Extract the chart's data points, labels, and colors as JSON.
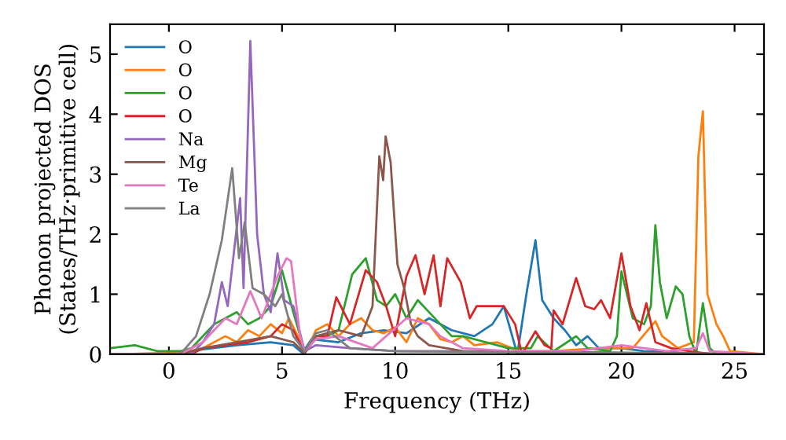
{
  "chart_data": {
    "type": "line",
    "xlabel": "Frequency (THz)",
    "ylabel": "Phonon projected DOS\n(States/THz·primitive cell)",
    "xlim": [
      -2.6,
      26.3
    ],
    "ylim": [
      0,
      5.5
    ],
    "xticks": [
      0,
      5,
      10,
      15,
      20,
      25
    ],
    "yticks": [
      0,
      1,
      2,
      3,
      4,
      5
    ],
    "grid": false,
    "legend": "top left",
    "series": [
      {
        "name": "O",
        "color": "#1f77b4",
        "x": [
          -2.6,
          0.5,
          1.5,
          3,
          4.5,
          5.5,
          5.9,
          6.3,
          7.5,
          8.5,
          9.5,
          10.5,
          11.5,
          12.5,
          13.5,
          14.3,
          14.8,
          15.1,
          15.4,
          15.8,
          16.2,
          16.5,
          17,
          17.5,
          18,
          18.5,
          19,
          20,
          21,
          23,
          25,
          26.3
        ],
        "values": [
          0,
          0.02,
          0.08,
          0.15,
          0.2,
          0.15,
          0.02,
          0.25,
          0.2,
          0.35,
          0.4,
          0.35,
          0.6,
          0.4,
          0.3,
          0.5,
          0.8,
          0.4,
          0,
          1.0,
          1.9,
          0.9,
          0.6,
          0.4,
          0.15,
          0.3,
          0.1,
          0.1,
          0.05,
          0.02,
          0,
          0
        ]
      },
      {
        "name": "O",
        "color": "#ff7f0e",
        "x": [
          -2.6,
          0.5,
          1.5,
          2.5,
          3,
          3.5,
          4,
          4.5,
          5,
          5.3,
          5.7,
          6,
          6.5,
          7,
          7.5,
          8,
          8.5,
          9,
          9.5,
          10,
          10.5,
          11,
          11.5,
          12,
          12.5,
          13,
          13.5,
          14.5,
          15.5,
          17,
          19,
          20.5,
          21.5,
          21.8,
          22.5,
          23.2,
          23.4,
          23.6,
          23.8,
          24.2,
          24.5,
          24.8,
          26.3
        ],
        "values": [
          0,
          0.02,
          0.1,
          0.3,
          0.2,
          0.4,
          0.3,
          0.5,
          0.35,
          0.6,
          0.3,
          0,
          0.4,
          0.5,
          0.3,
          0.5,
          0.6,
          0.4,
          0.35,
          0.45,
          0.2,
          0.6,
          0.5,
          0.25,
          0.2,
          0.3,
          0.15,
          0.2,
          0.05,
          0.05,
          0.1,
          0.1,
          0.55,
          0.3,
          0.1,
          0.2,
          3.3,
          4.05,
          1.0,
          0.5,
          0.3,
          0.05,
          0
        ]
      },
      {
        "name": "O",
        "color": "#2ca02c",
        "x": [
          -2.6,
          -1.5,
          -0.5,
          0.5,
          1,
          2,
          2.5,
          3,
          3.5,
          4,
          4.5,
          5,
          5.5,
          6,
          6.5,
          7,
          7.5,
          8.1,
          8.7,
          9.2,
          9.6,
          10,
          10.5,
          11,
          11.5,
          12,
          12.5,
          13,
          14,
          15,
          16,
          16.3,
          17,
          18,
          18.5,
          19.5,
          19.8,
          20,
          20.5,
          21,
          21.3,
          21.5,
          21.7,
          22,
          22.4,
          22.7,
          23,
          23.3,
          23.6,
          23.9,
          24.2,
          26.3
        ],
        "values": [
          0.1,
          0.15,
          0.05,
          0.05,
          0.1,
          0.5,
          0.6,
          0.7,
          0.5,
          0.6,
          0.8,
          1.4,
          0.7,
          0.05,
          0.3,
          0.3,
          0.4,
          1.33,
          1.6,
          0.9,
          0.8,
          1.0,
          0.6,
          0.9,
          0.7,
          0.5,
          0.3,
          0.3,
          0.2,
          0.1,
          0.1,
          0.3,
          0.05,
          0.3,
          0.1,
          0.05,
          0.3,
          1.38,
          0.6,
          0.5,
          0.8,
          2.15,
          1.2,
          0.6,
          1.13,
          1.0,
          0.3,
          0,
          0.85,
          0.1,
          0,
          0
        ]
      },
      {
        "name": "O",
        "color": "#d62728",
        "x": [
          -2.6,
          1,
          1.5,
          2.5,
          3.5,
          4.5,
          5,
          5.5,
          6,
          6.5,
          7,
          7.4,
          8,
          8.7,
          9.2,
          9.6,
          10,
          10.5,
          10.9,
          11.3,
          11.7,
          12,
          12.3,
          12.9,
          13.3,
          13.6,
          14,
          14.8,
          15.3,
          15.6,
          16.2,
          16.6,
          16.9,
          17,
          17.4,
          18,
          18.4,
          18.8,
          19.1,
          19.5,
          20,
          20.4,
          20.8,
          21.1,
          21.5,
          22.2,
          23,
          24,
          26.3
        ],
        "values": [
          0,
          0,
          0.1,
          0.15,
          0.2,
          0.3,
          0.5,
          0.4,
          0.02,
          0.3,
          0.3,
          0.95,
          0.5,
          1.4,
          1.2,
          0.8,
          0.3,
          1.3,
          1.65,
          1.0,
          1.65,
          0.8,
          1.6,
          1.2,
          0.6,
          0.8,
          0.8,
          0.8,
          0.5,
          0,
          0.38,
          0.15,
          0.1,
          0.73,
          0.5,
          1.27,
          0.8,
          0.75,
          0.9,
          0.6,
          1.68,
          0.8,
          0.4,
          0.85,
          0.2,
          0.1,
          0.05,
          0,
          0
        ]
      },
      {
        "name": "Na",
        "color": "#9467bd",
        "x": [
          -2.6,
          1,
          1.5,
          2,
          2.34,
          2.6,
          3.15,
          3.3,
          3.6,
          3.9,
          4.2,
          4.5,
          4.8,
          5.1,
          5.5,
          6,
          6.5,
          8,
          10,
          12,
          26.3
        ],
        "values": [
          0,
          0,
          0.2,
          0.5,
          1.2,
          0.8,
          2.6,
          1.1,
          5.22,
          2.0,
          1.0,
          0.7,
          1.68,
          0.9,
          0.8,
          0.05,
          0.15,
          0.1,
          0.05,
          0.05,
          0
        ]
      },
      {
        "name": "Mg",
        "color": "#8c564b",
        "x": [
          -2.6,
          0.5,
          1.5,
          3,
          4.5,
          5.5,
          6,
          6.5,
          7.5,
          8.5,
          9,
          9.3,
          9.47,
          9.58,
          9.8,
          10.1,
          10.4,
          10.7,
          11,
          11.5,
          13,
          26.3
        ],
        "values": [
          0,
          0,
          0.1,
          0.2,
          0.3,
          0.2,
          0.02,
          0.3,
          0.4,
          0.3,
          0.8,
          3.3,
          2.9,
          3.63,
          3.2,
          1.5,
          1.1,
          0.5,
          0.3,
          0.15,
          0.05,
          0
        ]
      },
      {
        "name": "Te",
        "color": "#e377c2",
        "x": [
          -2.6,
          0.5,
          1.5,
          2.5,
          3,
          3.6,
          4.1,
          4.8,
          5.2,
          5.4,
          5.8,
          6,
          6.5,
          7.5,
          9,
          10.5,
          11.5,
          12,
          13,
          15,
          18,
          20,
          22,
          23.3,
          23.6,
          23.9,
          26.3
        ],
        "values": [
          0,
          0,
          0.2,
          0.6,
          0.5,
          1.05,
          0.6,
          1.3,
          1.6,
          1.55,
          0.3,
          0.05,
          0.25,
          0.3,
          0.1,
          0.6,
          0.5,
          0.3,
          0.1,
          0.05,
          0.05,
          0.15,
          0.05,
          0.1,
          0.35,
          0.05,
          0
        ]
      },
      {
        "name": "La",
        "color": "#7f7f7f",
        "x": [
          -2.6,
          0.5,
          1.2,
          1.8,
          2.34,
          2.8,
          3.1,
          3.35,
          3.7,
          4.2,
          4.7,
          5,
          5.5,
          6,
          6.5,
          7,
          8,
          10,
          26.3
        ],
        "values": [
          0,
          0,
          0.3,
          1.0,
          1.9,
          3.1,
          1.6,
          2.2,
          1.1,
          1.0,
          0.8,
          1.0,
          0.3,
          0.05,
          0.35,
          0.4,
          0.1,
          0.05,
          0
        ]
      }
    ]
  }
}
